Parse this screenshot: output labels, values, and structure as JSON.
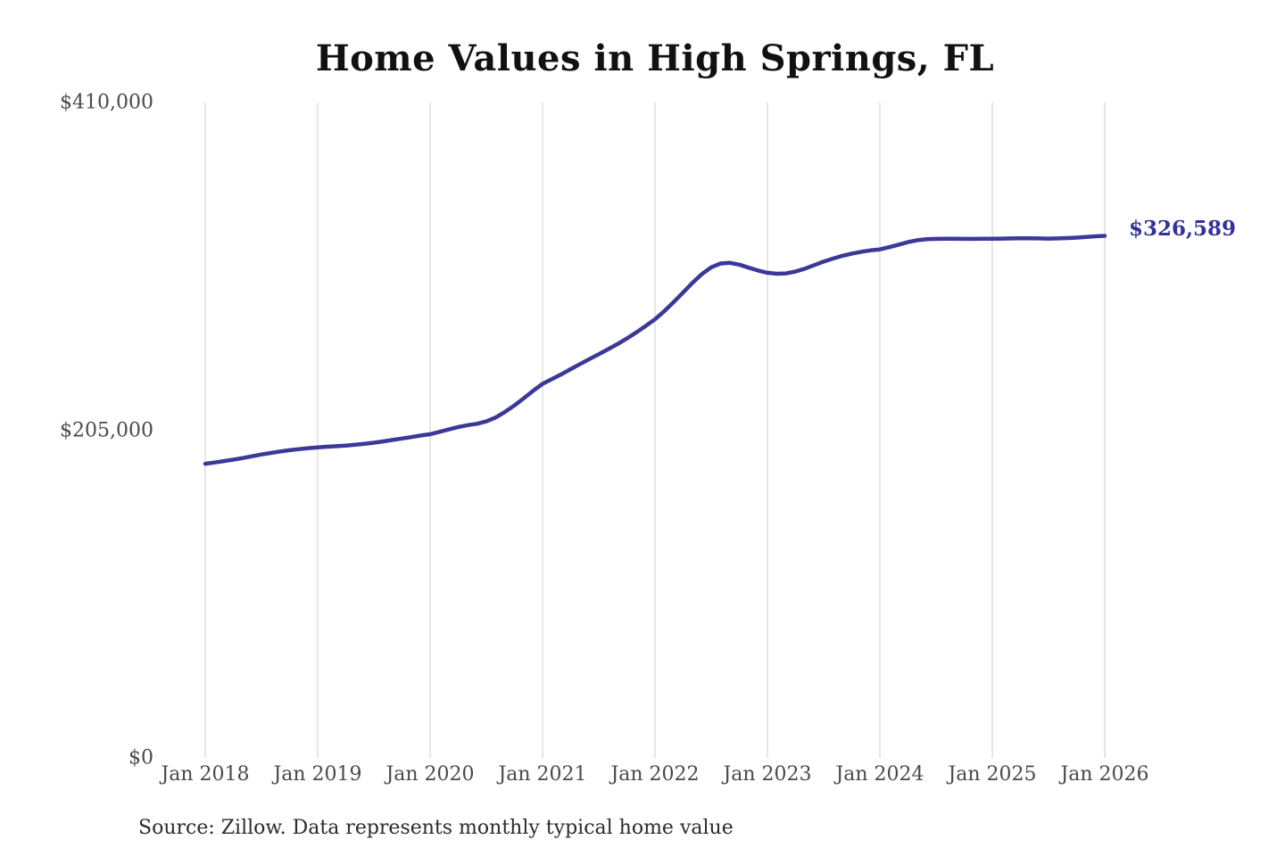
{
  "title": "Home Values in High Springs, FL",
  "source_note": "Source: Zillow. Data represents monthly typical home value",
  "end_label": "$326,589",
  "colors": {
    "line": "#3c3897",
    "end_label": "#32329a",
    "grid": "#cccccc",
    "axis_text": "#4a4a4a",
    "title_text": "#111111",
    "background": "#ffffff"
  },
  "chart_data": {
    "type": "line",
    "title": "Home Values in High Springs, FL",
    "xlabel": "",
    "ylabel": "",
    "grid": "vertical-only",
    "legend": "none",
    "ylim": [
      0,
      410000
    ],
    "x_start": "Jan 2018",
    "x_end": "Jan 2026",
    "x_interval": "monthly",
    "x_tick_labels": [
      "Jan 2018",
      "Jan 2019",
      "Jan 2020",
      "Jan 2021",
      "Jan 2022",
      "Jan 2023",
      "Jan 2024",
      "Jan 2025",
      "Jan 2026"
    ],
    "y_ticks": [
      {
        "label": "$0",
        "value": 0
      },
      {
        "label": "$205,000",
        "value": 205000
      },
      {
        "label": "$410,000",
        "value": 410000
      }
    ],
    "final_value": 326589,
    "final_value_label": "$326,589",
    "series": [
      {
        "name": "Monthly typical home value",
        "values": [
          184000,
          184800,
          185700,
          186600,
          187600,
          188700,
          189800,
          190800,
          191700,
          192500,
          193200,
          193800,
          194300,
          194700,
          195000,
          195400,
          195900,
          196500,
          197200,
          198000,
          198900,
          199800,
          200700,
          201700,
          202500,
          204000,
          205500,
          207000,
          208200,
          209000,
          210500,
          213000,
          216500,
          220500,
          225000,
          229700,
          234000,
          237000,
          240000,
          243200,
          246400,
          249500,
          252600,
          255700,
          258900,
          262400,
          266200,
          270200,
          274400,
          279500,
          285200,
          291200,
          297200,
          302700,
          306900,
          309300,
          309700,
          308600,
          306700,
          304900,
          303500,
          302900,
          303100,
          304300,
          306100,
          308300,
          310500,
          312400,
          314100,
          315500,
          316600,
          317500,
          318100,
          319500,
          321100,
          322700,
          323900,
          324500,
          324700,
          324800,
          324800,
          324700,
          324700,
          324800,
          324800,
          324900,
          325000,
          325100,
          325100,
          325000,
          324900,
          325000,
          325200,
          325500,
          325900,
          326300,
          326589
        ]
      }
    ]
  }
}
